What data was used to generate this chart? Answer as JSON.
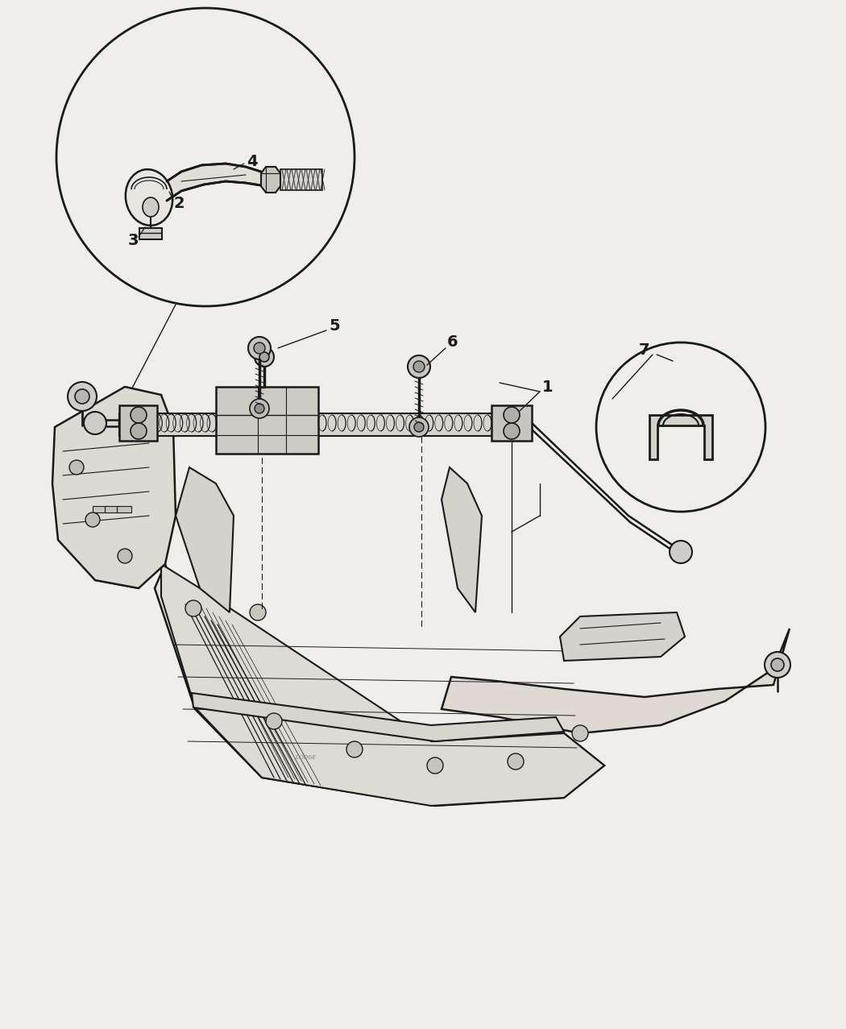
{
  "background_color": "#f0eeea",
  "line_color": "#1a1a1a",
  "fig_width": 10.5,
  "fig_height": 12.77,
  "dpi": 100,
  "c1x": 0.245,
  "c1y": 0.825,
  "c1r": 0.185,
  "c2x": 0.83,
  "c2y": 0.415,
  "c2r": 0.105
}
